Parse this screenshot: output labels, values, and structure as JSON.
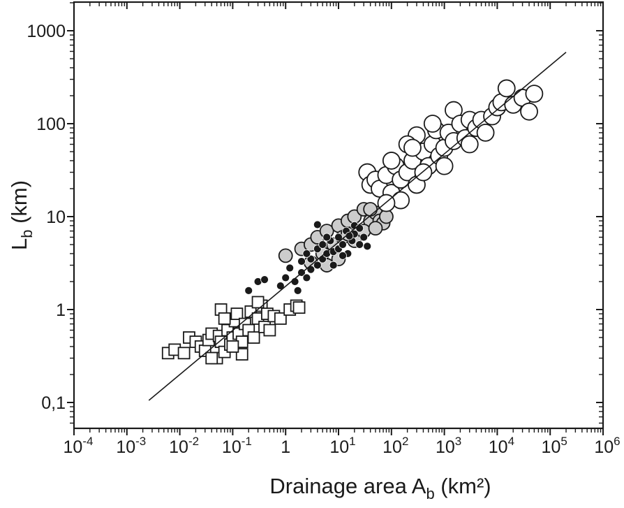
{
  "chart_data": {
    "type": "scatter",
    "title": "",
    "xlabel": {
      "main": "Drainage area A",
      "sub": "b",
      "tail": " (km²)"
    },
    "ylabel": {
      "main": "L",
      "sub": "b",
      "tail": " (km)"
    },
    "xscale": "log",
    "yscale": "log",
    "xlim": [
      0.0001,
      1000000
    ],
    "ylim": [
      0.052,
      1600
    ],
    "grid": false,
    "legend": "none",
    "xticks": [
      {
        "value": 0.0001,
        "base": "10",
        "exp": "-4"
      },
      {
        "value": 0.001,
        "base": "10",
        "exp": "-3"
      },
      {
        "value": 0.01,
        "base": "10",
        "exp": "-2"
      },
      {
        "value": 0.1,
        "base": "10",
        "exp": "-1"
      },
      {
        "value": 1,
        "base": "1",
        "exp": ""
      },
      {
        "value": 10,
        "base": "10",
        "exp": "1"
      },
      {
        "value": 100,
        "base": "10",
        "exp": "2"
      },
      {
        "value": 1000,
        "base": "10",
        "exp": "3"
      },
      {
        "value": 10000,
        "base": "10",
        "exp": "4"
      },
      {
        "value": 100000,
        "base": "10",
        "exp": "5"
      },
      {
        "value": 1000000,
        "base": "10",
        "exp": "6"
      }
    ],
    "yticks": [
      {
        "value": 0.1,
        "label": "0,1"
      },
      {
        "value": 1,
        "label": "1"
      },
      {
        "value": 10,
        "label": "10"
      },
      {
        "value": 100,
        "label": "100"
      },
      {
        "value": 1000,
        "label": "1000"
      }
    ],
    "fit_line": {
      "coef": 1.78,
      "exponent": 0.475,
      "x_range": [
        0.0026,
        200000
      ],
      "color": "#1a1a1a"
    },
    "series": [
      {
        "name": "squares-open",
        "marker": "square",
        "fill": "#ffffff",
        "stroke": "#1a1a1a",
        "points": [
          [
            0.006,
            0.34
          ],
          [
            0.008,
            0.37
          ],
          [
            0.012,
            0.34
          ],
          [
            0.015,
            0.5
          ],
          [
            0.02,
            0.45
          ],
          [
            0.025,
            0.4
          ],
          [
            0.03,
            0.36
          ],
          [
            0.035,
            0.47
          ],
          [
            0.04,
            0.55
          ],
          [
            0.05,
            0.3
          ],
          [
            0.055,
            0.52
          ],
          [
            0.06,
            0.45
          ],
          [
            0.07,
            0.35
          ],
          [
            0.08,
            0.6
          ],
          [
            0.09,
            0.42
          ],
          [
            0.1,
            0.5
          ],
          [
            0.11,
            0.75
          ],
          [
            0.12,
            0.9
          ],
          [
            0.13,
            0.55
          ],
          [
            0.15,
            0.45
          ],
          [
            0.17,
            0.7
          ],
          [
            0.2,
            0.6
          ],
          [
            0.22,
            0.95
          ],
          [
            0.25,
            0.5
          ],
          [
            0.3,
            0.8
          ],
          [
            0.35,
            1.1
          ],
          [
            0.4,
            0.65
          ],
          [
            0.45,
            0.9
          ],
          [
            0.5,
            0.6
          ],
          [
            0.06,
            1.0
          ],
          [
            0.07,
            0.8
          ],
          [
            0.3,
            1.2
          ],
          [
            0.6,
            0.85
          ],
          [
            0.8,
            0.8
          ],
          [
            1.2,
            1.0
          ],
          [
            1.6,
            1.1
          ],
          [
            1.8,
            1.05
          ],
          [
            0.15,
            0.33
          ],
          [
            0.1,
            0.4
          ],
          [
            0.04,
            0.3
          ]
        ]
      },
      {
        "name": "circles-gray",
        "marker": "circle-medium",
        "fill": "#cccccc",
        "stroke": "#1a1a1a",
        "points": [
          [
            1,
            3.8
          ],
          [
            2,
            4.5
          ],
          [
            3,
            5
          ],
          [
            4,
            6
          ],
          [
            5,
            4
          ],
          [
            6,
            7
          ],
          [
            8,
            5
          ],
          [
            10,
            8
          ],
          [
            12,
            6
          ],
          [
            15,
            9
          ],
          [
            20,
            10
          ],
          [
            25,
            7
          ],
          [
            30,
            12
          ],
          [
            40,
            9
          ],
          [
            50,
            11
          ],
          [
            60,
            9
          ],
          [
            70,
            8.5
          ],
          [
            20,
            5.5
          ],
          [
            30,
            7
          ],
          [
            40,
            12
          ],
          [
            50,
            7.5
          ],
          [
            10,
            3.5
          ],
          [
            6,
            3
          ],
          [
            15,
            6.5
          ],
          [
            3,
            3.2
          ],
          [
            80,
            10
          ]
        ]
      },
      {
        "name": "dots-black",
        "marker": "circle-small",
        "fill": "#1a1a1a",
        "stroke": "#ffffff",
        "points": [
          [
            0.2,
            1.6
          ],
          [
            0.3,
            2.0
          ],
          [
            0.4,
            2.1
          ],
          [
            0.8,
            1.8
          ],
          [
            1,
            2.2
          ],
          [
            1.2,
            2.8
          ],
          [
            1.5,
            2.0
          ],
          [
            2,
            2.5
          ],
          [
            2,
            3.3
          ],
          [
            2.5,
            2.2
          ],
          [
            3,
            3.5
          ],
          [
            3,
            2.7
          ],
          [
            4,
            4.5
          ],
          [
            4,
            3.0
          ],
          [
            5,
            5
          ],
          [
            5,
            3.5
          ],
          [
            6,
            4
          ],
          [
            7,
            5.5
          ],
          [
            8,
            4.2
          ],
          [
            10,
            6
          ],
          [
            10,
            4.5
          ],
          [
            12,
            5
          ],
          [
            14,
            7
          ],
          [
            15,
            4
          ],
          [
            18,
            5.5
          ],
          [
            20,
            6.5
          ],
          [
            20,
            8
          ],
          [
            25,
            5
          ],
          [
            30,
            6
          ],
          [
            35,
            4.8
          ],
          [
            4,
            8.2
          ],
          [
            6,
            6
          ],
          [
            8,
            3
          ],
          [
            12,
            3.8
          ],
          [
            2.5,
            4
          ],
          [
            1.7,
            1.6
          ],
          [
            16,
            6.2
          ],
          [
            25,
            7.5
          ]
        ]
      },
      {
        "name": "circles-open",
        "marker": "circle-large",
        "fill": "#ffffff",
        "stroke": "#1a1a1a",
        "points": [
          [
            35,
            30
          ],
          [
            40,
            22
          ],
          [
            50,
            25
          ],
          [
            60,
            20
          ],
          [
            80,
            28
          ],
          [
            100,
            18
          ],
          [
            120,
            35
          ],
          [
            150,
            25
          ],
          [
            200,
            30
          ],
          [
            250,
            40
          ],
          [
            300,
            22
          ],
          [
            300,
            75
          ],
          [
            400,
            50
          ],
          [
            500,
            35
          ],
          [
            600,
            60
          ],
          [
            700,
            85
          ],
          [
            800,
            45
          ],
          [
            1000,
            55
          ],
          [
            1200,
            80
          ],
          [
            1500,
            140
          ],
          [
            1500,
            65
          ],
          [
            2000,
            100
          ],
          [
            2500,
            70
          ],
          [
            3000,
            110
          ],
          [
            4000,
            90
          ],
          [
            5000,
            110
          ],
          [
            6000,
            80
          ],
          [
            8000,
            120
          ],
          [
            10000,
            150
          ],
          [
            12000,
            170
          ],
          [
            15000,
            240
          ],
          [
            20000,
            160
          ],
          [
            30000,
            190
          ],
          [
            40000,
            135
          ],
          [
            50000,
            210
          ],
          [
            200,
            60
          ],
          [
            100,
            40
          ],
          [
            400,
            30
          ],
          [
            600,
            100
          ],
          [
            150,
            15
          ],
          [
            80,
            14
          ],
          [
            1000,
            35
          ],
          [
            3000,
            60
          ],
          [
            250,
            55
          ]
        ]
      }
    ]
  }
}
